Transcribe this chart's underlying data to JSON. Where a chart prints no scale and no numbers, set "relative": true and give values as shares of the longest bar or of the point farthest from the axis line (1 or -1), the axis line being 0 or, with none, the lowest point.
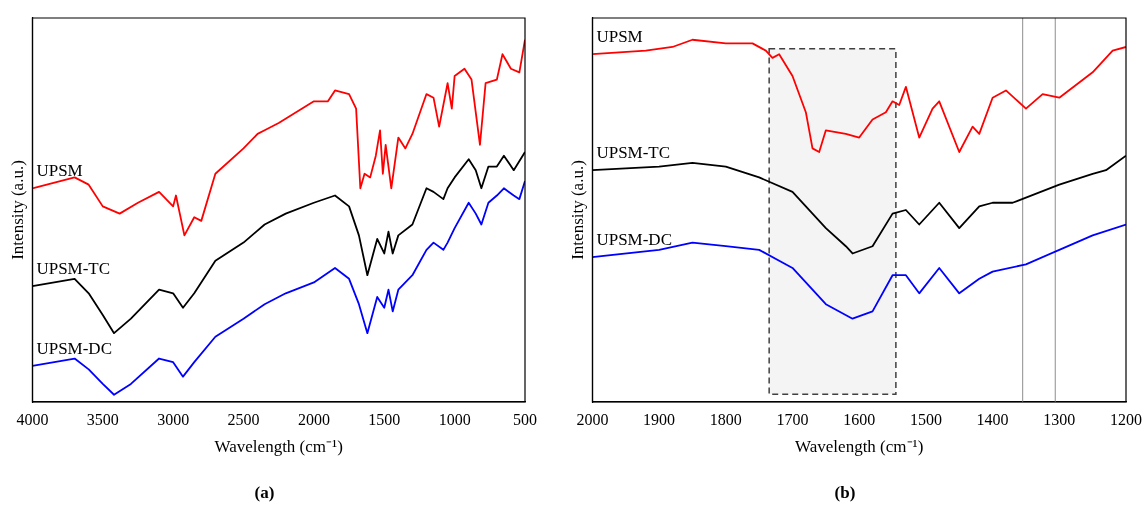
{
  "chart_data": [
    {
      "type": "line",
      "title": "(a)",
      "xlabel": "Wavelength (cm⁻¹)",
      "ylabel": "Intensity (a.u.)",
      "relative": true,
      "legend": false,
      "grid": false,
      "marker": "none",
      "line_style": "solid",
      "xlim": [
        4000,
        500
      ],
      "xticks": [
        4000,
        3500,
        3000,
        2500,
        2000,
        1500,
        1000,
        500
      ],
      "series": [
        {
          "name": "UPSM",
          "color": "#ff0000",
          "x": [
            4000,
            3700,
            3600,
            3500,
            3380,
            3250,
            3100,
            3050,
            3000,
            2980,
            2920,
            2850,
            2800,
            2700,
            2500,
            2400,
            2350,
            2250,
            2000,
            1900,
            1850,
            1750,
            1700,
            1670,
            1640,
            1600,
            1560,
            1530,
            1510,
            1490,
            1450,
            1400,
            1350,
            1300,
            1200,
            1150,
            1110,
            1050,
            1020,
            1000,
            930,
            880,
            820,
            780,
            700,
            660,
            600,
            540,
            500
          ],
          "values": [
            0.59,
            0.62,
            0.6,
            0.54,
            0.52,
            0.55,
            0.58,
            0.56,
            0.54,
            0.57,
            0.46,
            0.51,
            0.5,
            0.63,
            0.7,
            0.74,
            0.75,
            0.77,
            0.83,
            0.83,
            0.86,
            0.85,
            0.81,
            0.59,
            0.63,
            0.62,
            0.68,
            0.75,
            0.63,
            0.71,
            0.59,
            0.73,
            0.7,
            0.74,
            0.85,
            0.84,
            0.76,
            0.88,
            0.81,
            0.9,
            0.92,
            0.89,
            0.71,
            0.88,
            0.89,
            0.96,
            0.92,
            0.91,
            1
          ]
        },
        {
          "name": "UPSM-TC",
          "color": "#000000",
          "x": [
            4000,
            3700,
            3600,
            3500,
            3420,
            3300,
            3100,
            3000,
            2930,
            2850,
            2700,
            2500,
            2350,
            2200,
            2000,
            1850,
            1750,
            1680,
            1620,
            1550,
            1500,
            1470,
            1440,
            1400,
            1300,
            1200,
            1150,
            1080,
            1050,
            1000,
            900,
            850,
            810,
            760,
            700,
            650,
            580,
            500
          ],
          "values": [
            0.32,
            0.34,
            0.3,
            0.24,
            0.19,
            0.23,
            0.31,
            0.3,
            0.26,
            0.3,
            0.39,
            0.44,
            0.49,
            0.52,
            0.55,
            0.57,
            0.54,
            0.46,
            0.35,
            0.45,
            0.41,
            0.47,
            0.41,
            0.46,
            0.49,
            0.59,
            0.58,
            0.56,
            0.59,
            0.62,
            0.67,
            0.64,
            0.59,
            0.65,
            0.65,
            0.68,
            0.64,
            0.69
          ]
        },
        {
          "name": "UPSM-DC",
          "color": "#0000ff",
          "x": [
            4000,
            3700,
            3600,
            3500,
            3420,
            3300,
            3100,
            3000,
            2930,
            2850,
            2700,
            2500,
            2350,
            2200,
            2000,
            1850,
            1750,
            1680,
            1620,
            1550,
            1500,
            1470,
            1440,
            1400,
            1300,
            1200,
            1150,
            1080,
            1050,
            1000,
            900,
            850,
            810,
            760,
            700,
            650,
            580,
            540,
            500
          ],
          "values": [
            0.1,
            0.12,
            0.09,
            0.05,
            0.02,
            0.05,
            0.12,
            0.11,
            0.07,
            0.11,
            0.18,
            0.23,
            0.27,
            0.3,
            0.33,
            0.37,
            0.34,
            0.27,
            0.19,
            0.29,
            0.26,
            0.31,
            0.25,
            0.31,
            0.35,
            0.42,
            0.44,
            0.42,
            0.44,
            0.48,
            0.55,
            0.52,
            0.49,
            0.55,
            0.57,
            0.59,
            0.57,
            0.56,
            0.61
          ]
        }
      ]
    },
    {
      "type": "line",
      "title": "(b)",
      "xlabel": "Wavelength (cm⁻¹)",
      "ylabel": "Intensity (a.u.)",
      "relative": true,
      "legend": false,
      "grid": false,
      "marker": "none",
      "line_style": "solid",
      "xlim": [
        2000,
        1200
      ],
      "xticks": [
        2000,
        1900,
        1800,
        1700,
        1600,
        1500,
        1400,
        1300,
        1200
      ],
      "ref_lines": [
        {
          "axis": "x",
          "value": 1355,
          "color": "#a0a0a0"
        },
        {
          "axis": "x",
          "value": 1306,
          "color": "#a0a0a0"
        }
      ],
      "bands": [
        {
          "axis": "x",
          "from": 1735,
          "to": 1545,
          "color": "#404040"
        }
      ],
      "series": [
        {
          "name": "UPSM",
          "color": "#ff0000",
          "x": [
            2000,
            1920,
            1880,
            1850,
            1800,
            1760,
            1740,
            1730,
            1720,
            1700,
            1680,
            1670,
            1660,
            1650,
            1620,
            1600,
            1580,
            1560,
            1550,
            1540,
            1530,
            1510,
            1490,
            1480,
            1450,
            1430,
            1420,
            1400,
            1380,
            1350,
            1325,
            1300,
            1250,
            1220,
            1200
          ],
          "values": [
            0.96,
            0.97,
            0.98,
            1,
            0.99,
            0.99,
            0.97,
            0.95,
            0.96,
            0.9,
            0.8,
            0.7,
            0.69,
            0.75,
            0.74,
            0.73,
            0.78,
            0.8,
            0.83,
            0.82,
            0.87,
            0.73,
            0.81,
            0.83,
            0.69,
            0.76,
            0.74,
            0.84,
            0.86,
            0.81,
            0.85,
            0.84,
            0.91,
            0.97,
            0.98
          ]
        },
        {
          "name": "UPSM-TC",
          "color": "#000000",
          "x": [
            2000,
            1900,
            1850,
            1800,
            1750,
            1700,
            1650,
            1620,
            1610,
            1580,
            1550,
            1530,
            1510,
            1480,
            1450,
            1420,
            1400,
            1370,
            1300,
            1250,
            1230,
            1200
          ],
          "values": [
            0.64,
            0.65,
            0.66,
            0.65,
            0.62,
            0.58,
            0.48,
            0.43,
            0.41,
            0.43,
            0.52,
            0.53,
            0.49,
            0.55,
            0.48,
            0.54,
            0.55,
            0.55,
            0.6,
            0.63,
            0.64,
            0.68
          ]
        },
        {
          "name": "UPSM-DC",
          "color": "#0000ff",
          "x": [
            2000,
            1900,
            1850,
            1800,
            1750,
            1700,
            1650,
            1610,
            1580,
            1550,
            1530,
            1510,
            1480,
            1450,
            1420,
            1400,
            1350,
            1300,
            1250,
            1200
          ],
          "values": [
            0.4,
            0.42,
            0.44,
            0.43,
            0.42,
            0.37,
            0.27,
            0.23,
            0.25,
            0.35,
            0.35,
            0.3,
            0.37,
            0.3,
            0.34,
            0.36,
            0.38,
            0.42,
            0.46,
            0.49
          ]
        }
      ]
    }
  ]
}
